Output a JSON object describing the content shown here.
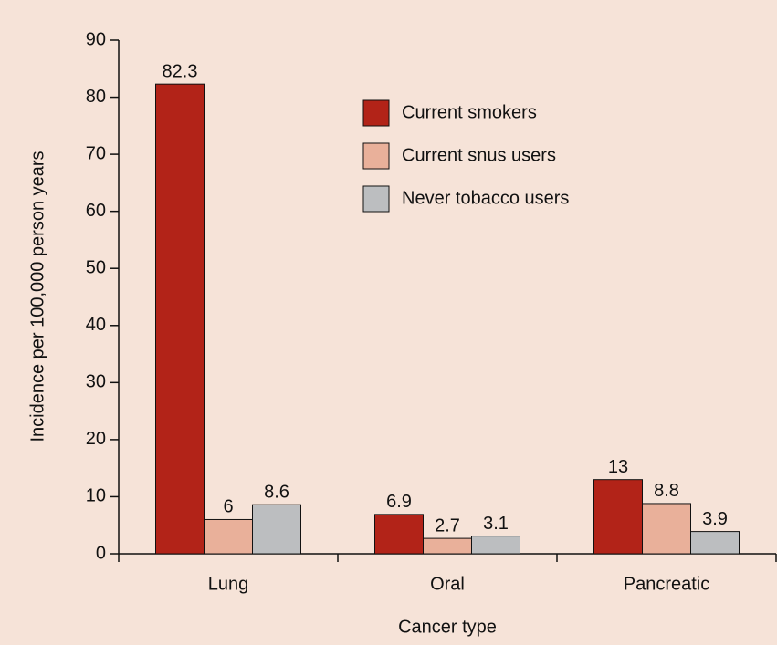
{
  "chart_data": {
    "type": "bar",
    "xlabel": "Cancer type",
    "ylabel": "Incidence per 100,000 person years",
    "categories": [
      "Lung",
      "Oral",
      "Pancreatic"
    ],
    "series": [
      {
        "name": "Current smokers",
        "color": "#b22318",
        "values": [
          82.3,
          6.9,
          13
        ]
      },
      {
        "name": "Current snus users",
        "color": "#e9b09a",
        "values": [
          6,
          2.7,
          8.8
        ]
      },
      {
        "name": "Never tobacco users",
        "color": "#bcbec0",
        "values": [
          8.6,
          3.1,
          3.9
        ]
      }
    ],
    "ylim": [
      0,
      90
    ],
    "yticks": [
      0,
      10,
      20,
      30,
      40,
      50,
      60,
      70,
      80,
      90
    ],
    "legend": "upper center"
  }
}
